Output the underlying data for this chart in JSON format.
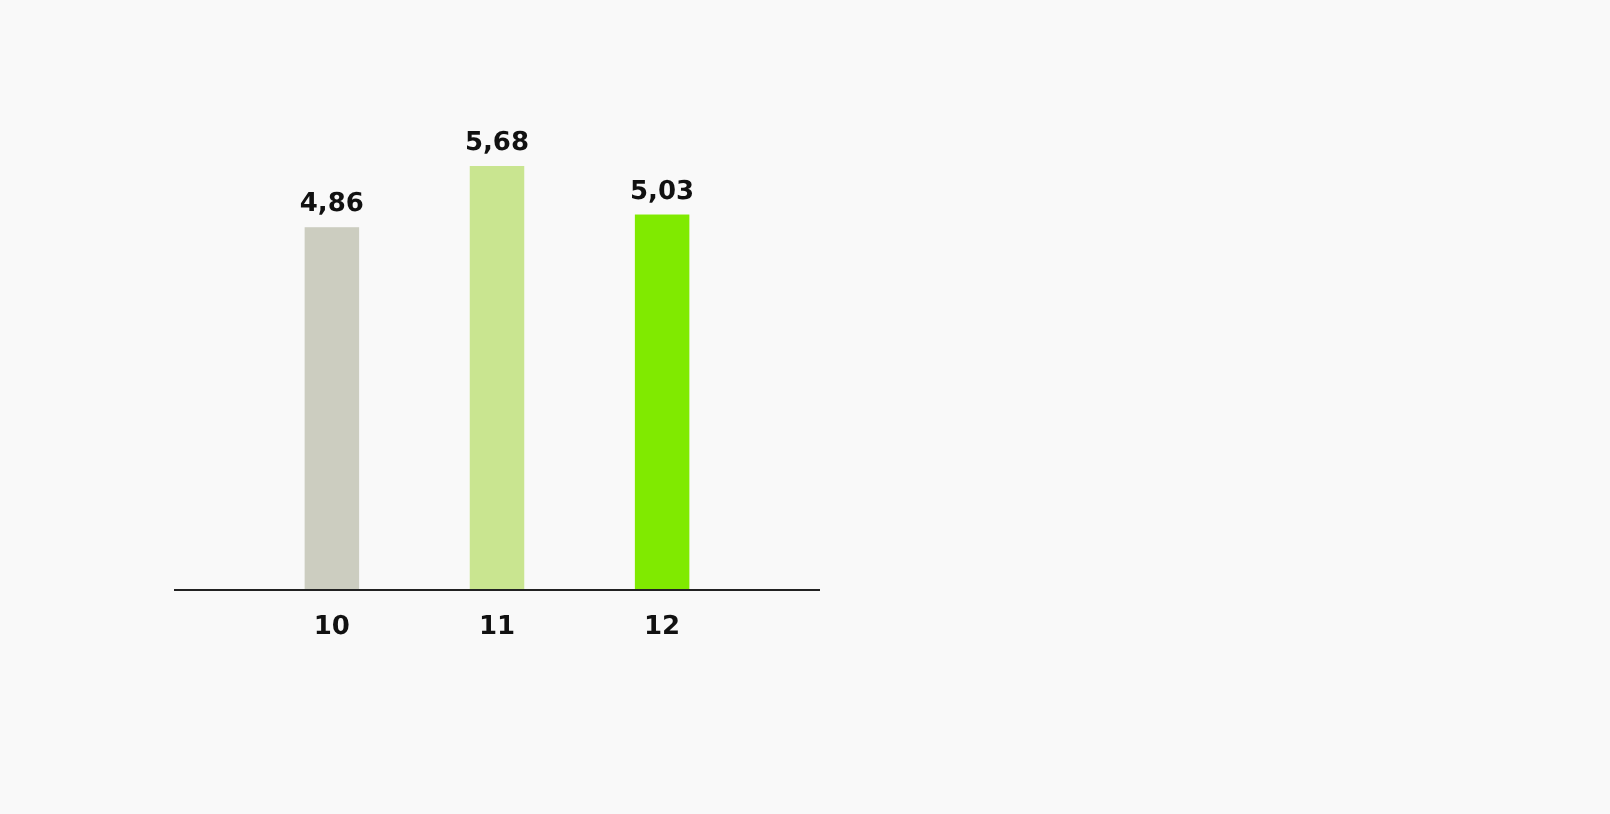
{
  "chart_data": {
    "type": "bar",
    "categories": [
      "10",
      "11",
      "12"
    ],
    "values": [
      4.86,
      5.68,
      5.03
    ],
    "value_labels": [
      "4,86",
      "5,68",
      "5,03"
    ],
    "colors": [
      "#cccdc0",
      "#c9e590",
      "#80ea00"
    ]
  }
}
